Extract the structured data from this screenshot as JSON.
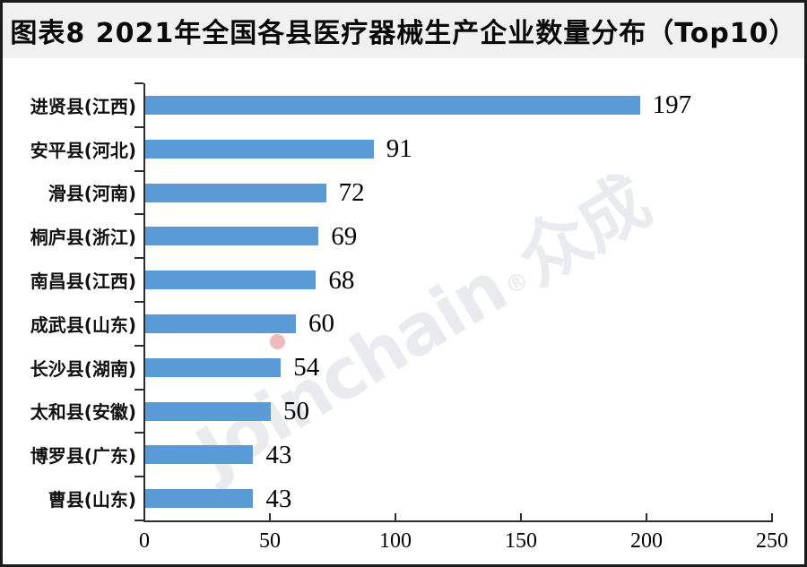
{
  "header": {
    "title": "图表8 2021年全国各县医疗器械生产企业数量分布（Top10）"
  },
  "watermark": {
    "text_latin": "Joinchain",
    "reg_mark": "®",
    "text_cjk": "众成",
    "color": "#e9ebef",
    "dot_color": "#e48286"
  },
  "chart_data": {
    "type": "bar",
    "orientation": "horizontal",
    "title": "图表8 2021年全国各县医疗器械生产企业数量分布（Top10）",
    "categories": [
      "进贤县(江西)",
      "安平县(河北)",
      "滑县(河南)",
      "桐庐县(浙江)",
      "南昌县(江西)",
      "成武县(山东)",
      "长沙县(湖南)",
      "太和县(安徽)",
      "博罗县(广东)",
      "曹县(山东)"
    ],
    "values": [
      197,
      91,
      72,
      69,
      68,
      60,
      54,
      50,
      43,
      43
    ],
    "data_labels": [
      197,
      91,
      72,
      69,
      68,
      60,
      54,
      50,
      43,
      43
    ],
    "x_ticks": [
      0,
      50,
      100,
      150,
      200,
      250
    ],
    "xlim": [
      0,
      250
    ],
    "xlabel": "",
    "ylabel": "",
    "grid": false,
    "legend": false,
    "bar_color": "#5B9BD5",
    "axis_color": "#2d2d2d"
  }
}
